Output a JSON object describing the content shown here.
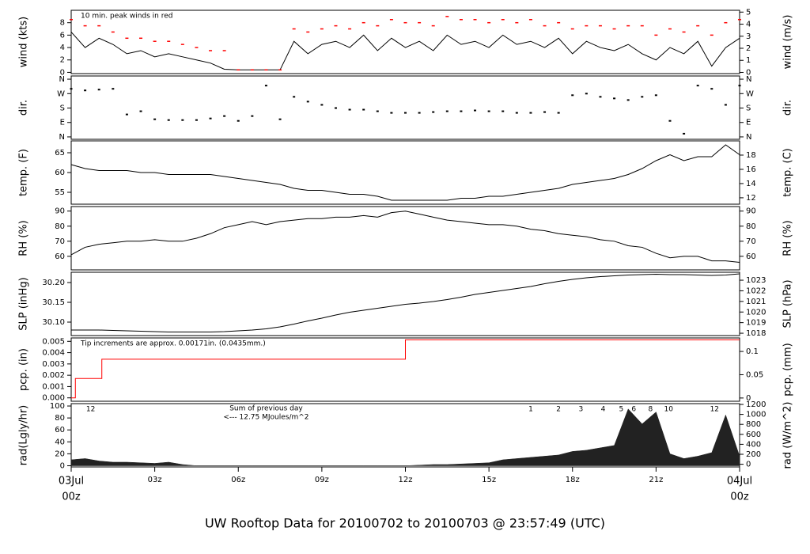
{
  "title": "UW Rooftop Data for 20100702  to  20100703 @ 23:57:49  (UTC)",
  "title_color": "#1a1ae0",
  "chart_data": [
    {
      "type": "line",
      "ylabel": "wind (kts)",
      "y2label": "wind (m/s)",
      "xlim": [
        0,
        24
      ],
      "ylim": [
        -0.2,
        10
      ],
      "yticks": [
        0,
        2,
        4,
        6,
        8
      ],
      "y2lim": [
        -0.1,
        5.15
      ],
      "y2ticks": [
        0,
        1,
        2,
        3,
        4,
        5
      ],
      "annotation": "10 min. peak winds in red",
      "annotation_color": "#ff0000",
      "x": [
        0,
        0.5,
        1,
        1.5,
        2,
        2.5,
        3,
        3.5,
        4,
        4.5,
        5,
        5.5,
        6,
        6.5,
        7,
        7.5,
        8,
        8.5,
        9,
        9.5,
        10,
        10.5,
        11,
        11.5,
        12,
        12.5,
        13,
        13.5,
        14,
        14.5,
        15,
        15.5,
        16,
        16.5,
        17,
        17.5,
        18,
        18.5,
        19,
        19.5,
        20,
        20.5,
        21,
        21.5,
        22,
        22.5,
        23,
        23.5,
        24
      ],
      "series": [
        {
          "color": "#000000",
          "marker": "line",
          "values": [
            6.5,
            4,
            5.5,
            4.5,
            3,
            3.5,
            2.5,
            3,
            2.5,
            2,
            1.5,
            0.5,
            0.4,
            0.4,
            0.4,
            0.4,
            5,
            3,
            4.5,
            5,
            4,
            6,
            3.5,
            5.5,
            4,
            5,
            3.5,
            6,
            4.5,
            5,
            4,
            6,
            4.5,
            5,
            4,
            5.5,
            3,
            5,
            4,
            3.5,
            4.5,
            3,
            2,
            4,
            3,
            5,
            1,
            4,
            5.5
          ]
        },
        {
          "color": "#ff0000",
          "marker": "dash",
          "values": [
            8.5,
            7.5,
            7.5,
            6.5,
            5.5,
            5.5,
            5,
            5,
            4.5,
            4,
            3.5,
            3.5,
            0.4,
            0.4,
            0.4,
            0.4,
            7,
            6.5,
            7,
            7.5,
            7,
            8,
            7.5,
            8.5,
            8,
            8,
            7.5,
            9,
            8.5,
            8.5,
            8,
            8.5,
            8,
            8.5,
            7.5,
            8,
            7,
            7.5,
            7.5,
            7,
            7.5,
            7.5,
            6,
            7,
            6.5,
            7.5,
            6,
            8,
            8.5
          ]
        }
      ]
    },
    {
      "type": "scatter",
      "ylabel": "dir.",
      "y2label": "dir.",
      "color": "#000000",
      "xlim": [
        0,
        24
      ],
      "ylim": [
        -15,
        380
      ],
      "yticks": [
        {
          "value": 0,
          "label": "N"
        },
        {
          "value": 90,
          "label": "E"
        },
        {
          "value": 180,
          "label": "S"
        },
        {
          "value": 270,
          "label": "W"
        },
        {
          "value": 360,
          "label": "N"
        }
      ],
      "y2lim": [
        -15,
        380
      ],
      "y2ticks": [
        {
          "value": 0,
          "label": "N"
        },
        {
          "value": 90,
          "label": "E"
        },
        {
          "value": 180,
          "label": "S"
        },
        {
          "value": 270,
          "label": "W"
        },
        {
          "value": 360,
          "label": "N"
        }
      ],
      "x": [
        0,
        0.5,
        1,
        1.5,
        2,
        2.5,
        3,
        3.5,
        4,
        4.5,
        5,
        5.5,
        6,
        6.5,
        7,
        7.5,
        8,
        8.5,
        9,
        9.5,
        10,
        10.5,
        11,
        11.5,
        12,
        12.5,
        13,
        13.5,
        14,
        14.5,
        15,
        15.5,
        16,
        16.5,
        17,
        17.5,
        18,
        18.5,
        19,
        19.5,
        20,
        20.5,
        21,
        21.5,
        22,
        22.5,
        23,
        23.5,
        24
      ],
      "values": [
        300,
        290,
        295,
        300,
        140,
        160,
        110,
        105,
        105,
        105,
        115,
        130,
        100,
        130,
        320,
        110,
        250,
        220,
        200,
        180,
        170,
        170,
        160,
        150,
        150,
        150,
        155,
        160,
        160,
        165,
        160,
        160,
        150,
        150,
        155,
        150,
        260,
        270,
        250,
        240,
        230,
        250,
        260,
        100,
        20,
        320,
        300,
        200,
        320
      ]
    },
    {
      "type": "line",
      "ylabel": "temp. (F)",
      "y2label": "temp. (C)",
      "color": "#000000",
      "xlim": [
        0,
        24
      ],
      "ylim": [
        52,
        68
      ],
      "yticks": [
        55,
        60,
        65
      ],
      "y2lim": [
        11.1,
        20
      ],
      "y2ticks": [
        12,
        14,
        16,
        18
      ],
      "x": [
        0,
        0.5,
        1,
        1.5,
        2,
        2.5,
        3,
        3.5,
        4,
        4.5,
        5,
        5.5,
        6,
        6.5,
        7,
        7.5,
        8,
        8.5,
        9,
        9.5,
        10,
        10.5,
        11,
        11.5,
        12,
        12.5,
        13,
        13.5,
        14,
        14.5,
        15,
        15.5,
        16,
        16.5,
        17,
        17.5,
        18,
        18.5,
        19,
        19.5,
        20,
        20.5,
        21,
        21.5,
        22,
        22.5,
        23,
        23.5,
        24
      ],
      "values": [
        62,
        61,
        60.5,
        60.5,
        60.5,
        60,
        60,
        59.5,
        59.5,
        59.5,
        59.5,
        59,
        58.5,
        58,
        57.5,
        57,
        56,
        55.5,
        55.5,
        55,
        54.5,
        54.5,
        54,
        53,
        53,
        53,
        53,
        53,
        53.5,
        53.5,
        54,
        54,
        54.5,
        55,
        55.5,
        56,
        57,
        57.5,
        58,
        58.5,
        59.5,
        61,
        63,
        64.5,
        63,
        64,
        64,
        67,
        64.5
      ]
    },
    {
      "type": "line",
      "ylabel": "RH (%)",
      "y2label": "RH (%)",
      "color": "#000000",
      "xlim": [
        0,
        24
      ],
      "ylim": [
        51,
        93
      ],
      "yticks": [
        60,
        70,
        80,
        90
      ],
      "y2lim": [
        51,
        93
      ],
      "y2ticks": [
        60,
        70,
        80,
        90
      ],
      "x": [
        0,
        0.5,
        1,
        1.5,
        2,
        2.5,
        3,
        3.5,
        4,
        4.5,
        5,
        5.5,
        6,
        6.5,
        7,
        7.5,
        8,
        8.5,
        9,
        9.5,
        10,
        10.5,
        11,
        11.5,
        12,
        12.5,
        13,
        13.5,
        14,
        14.5,
        15,
        15.5,
        16,
        16.5,
        17,
        17.5,
        18,
        18.5,
        19,
        19.5,
        20,
        20.5,
        21,
        21.5,
        22,
        22.5,
        23,
        23.5,
        24
      ],
      "values": [
        61,
        66,
        68,
        69,
        70,
        70,
        71,
        70,
        70,
        72,
        75,
        79,
        81,
        83,
        81,
        83,
        84,
        85,
        85,
        86,
        86,
        87,
        86,
        89,
        90,
        88,
        86,
        84,
        83,
        82,
        81,
        81,
        80,
        78,
        77,
        75,
        74,
        73,
        71,
        70,
        67,
        66,
        62,
        59,
        60,
        60,
        57,
        57,
        56
      ]
    },
    {
      "type": "line",
      "ylabel": "SLP (inHg)",
      "y2label": "SLP (hPa)",
      "color": "#000000",
      "xlim": [
        0,
        24
      ],
      "ylim": [
        30.066,
        30.226
      ],
      "yticks": [
        {
          "value": 30.1,
          "label": "30.10"
        },
        {
          "value": 30.15,
          "label": "30.15"
        },
        {
          "value": 30.2,
          "label": "30.20"
        }
      ],
      "y2lim": [
        1017.78,
        1023.75
      ],
      "y2ticks": [
        1018,
        1019,
        1020,
        1021,
        1022,
        1023
      ],
      "x": [
        0,
        0.5,
        1,
        1.5,
        2,
        2.5,
        3,
        3.5,
        4,
        4.5,
        5,
        5.5,
        6,
        6.5,
        7,
        7.5,
        8,
        8.5,
        9,
        9.5,
        10,
        10.5,
        11,
        11.5,
        12,
        12.5,
        13,
        13.5,
        14,
        14.5,
        15,
        15.5,
        16,
        16.5,
        17,
        17.5,
        18,
        18.5,
        19,
        19.5,
        20,
        20.5,
        21,
        21.5,
        22,
        22.5,
        23,
        23.5,
        24
      ],
      "values": [
        30.08,
        30.08,
        30.08,
        30.079,
        30.078,
        30.077,
        30.076,
        30.075,
        30.075,
        30.075,
        30.075,
        30.076,
        30.078,
        30.08,
        30.083,
        30.088,
        30.095,
        30.103,
        30.11,
        30.118,
        30.125,
        30.13,
        30.135,
        30.14,
        30.145,
        30.148,
        30.152,
        30.157,
        30.163,
        30.17,
        30.175,
        30.18,
        30.185,
        30.19,
        30.197,
        30.203,
        30.208,
        30.212,
        30.215,
        30.217,
        30.219,
        30.22,
        30.221,
        30.22,
        30.22,
        30.219,
        30.218,
        30.219,
        30.222
      ]
    },
    {
      "type": "step",
      "ylabel": "pcp. (in)",
      "y2label": "pcp. (mm)",
      "color": "#ff0000",
      "xlim": [
        0,
        24
      ],
      "ylim": [
        -0.0003,
        0.0053
      ],
      "yticks": [
        {
          "value": 0,
          "label": "0.000"
        },
        {
          "value": 0.001,
          "label": "0.001"
        },
        {
          "value": 0.002,
          "label": "0.002"
        },
        {
          "value": 0.003,
          "label": "0.003"
        },
        {
          "value": 0.004,
          "label": "0.004"
        },
        {
          "value": 0.005,
          "label": "0.005"
        }
      ],
      "y2lim": [
        -0.007,
        0.129
      ],
      "y2ticks": [
        0,
        0.05,
        0.1
      ],
      "annotation": "Tip increments are approx. 0.00171in. (0.0435mm.)",
      "annotation_color": "#ff0000",
      "x": [
        0,
        0.15,
        1.1,
        12,
        24
      ],
      "values": [
        0,
        0.00171,
        0.00342,
        0.00513,
        0.00513
      ]
    },
    {
      "type": "area",
      "ylabel": "rad(Lgly/hr)",
      "y2label": "rad (W/m^2)",
      "color": "#222222",
      "xlim": [
        0,
        24
      ],
      "ylim": [
        -2,
        104
      ],
      "yticks": [
        0,
        20,
        40,
        60,
        80,
        100
      ],
      "y2lim": [
        -54,
        1216
      ],
      "y2ticks": [
        0,
        200,
        400,
        600,
        800,
        1000,
        1200
      ],
      "annotations": [
        "Sum of previous day",
        "<--- 12.75 MJoules/m^2"
      ],
      "annotation_color": "#9900cc",
      "hour_marks": {
        "x": [
          0.7,
          16.5,
          17.5,
          18.3,
          19.1,
          19.75,
          20.2,
          20.8,
          21.45,
          23.1
        ],
        "labels": [
          "12",
          "1",
          "2",
          "3",
          "4",
          "5",
          "6",
          "8",
          "10",
          "12"
        ]
      },
      "x": [
        0,
        0.5,
        1,
        1.5,
        2,
        2.5,
        3,
        3.5,
        4,
        4.5,
        5,
        5.5,
        6,
        6.5,
        7,
        7.5,
        8,
        8.5,
        9,
        9.5,
        10,
        10.5,
        11,
        11.5,
        12,
        12.5,
        13,
        13.5,
        14,
        14.5,
        15,
        15.5,
        16,
        16.5,
        17,
        17.5,
        18,
        18.5,
        19,
        19.5,
        20,
        20.5,
        21,
        21.5,
        22,
        22.5,
        23,
        23.5,
        24
      ],
      "values": [
        10,
        12,
        8,
        6,
        6,
        5,
        4,
        6,
        2,
        0,
        0,
        0,
        0,
        0,
        0,
        0,
        0,
        0,
        0,
        0,
        0,
        0,
        0,
        0,
        0,
        1,
        2,
        2,
        3,
        4,
        5,
        10,
        12,
        14,
        16,
        18,
        24,
        26,
        30,
        34,
        95,
        70,
        90,
        20,
        12,
        16,
        22,
        85,
        16
      ],
      "xticks": [
        {
          "value": 0,
          "label": "00z",
          "date": "03Jul"
        },
        {
          "value": 3,
          "label": "03z"
        },
        {
          "value": 6,
          "label": "06z"
        },
        {
          "value": 9,
          "label": "09z"
        },
        {
          "value": 12,
          "label": "12z"
        },
        {
          "value": 15,
          "label": "15z"
        },
        {
          "value": 18,
          "label": "18z"
        },
        {
          "value": 21,
          "label": "21z"
        },
        {
          "value": 24,
          "label": "00z",
          "date": "04Jul"
        }
      ],
      "date_color": "#ff0000"
    }
  ]
}
